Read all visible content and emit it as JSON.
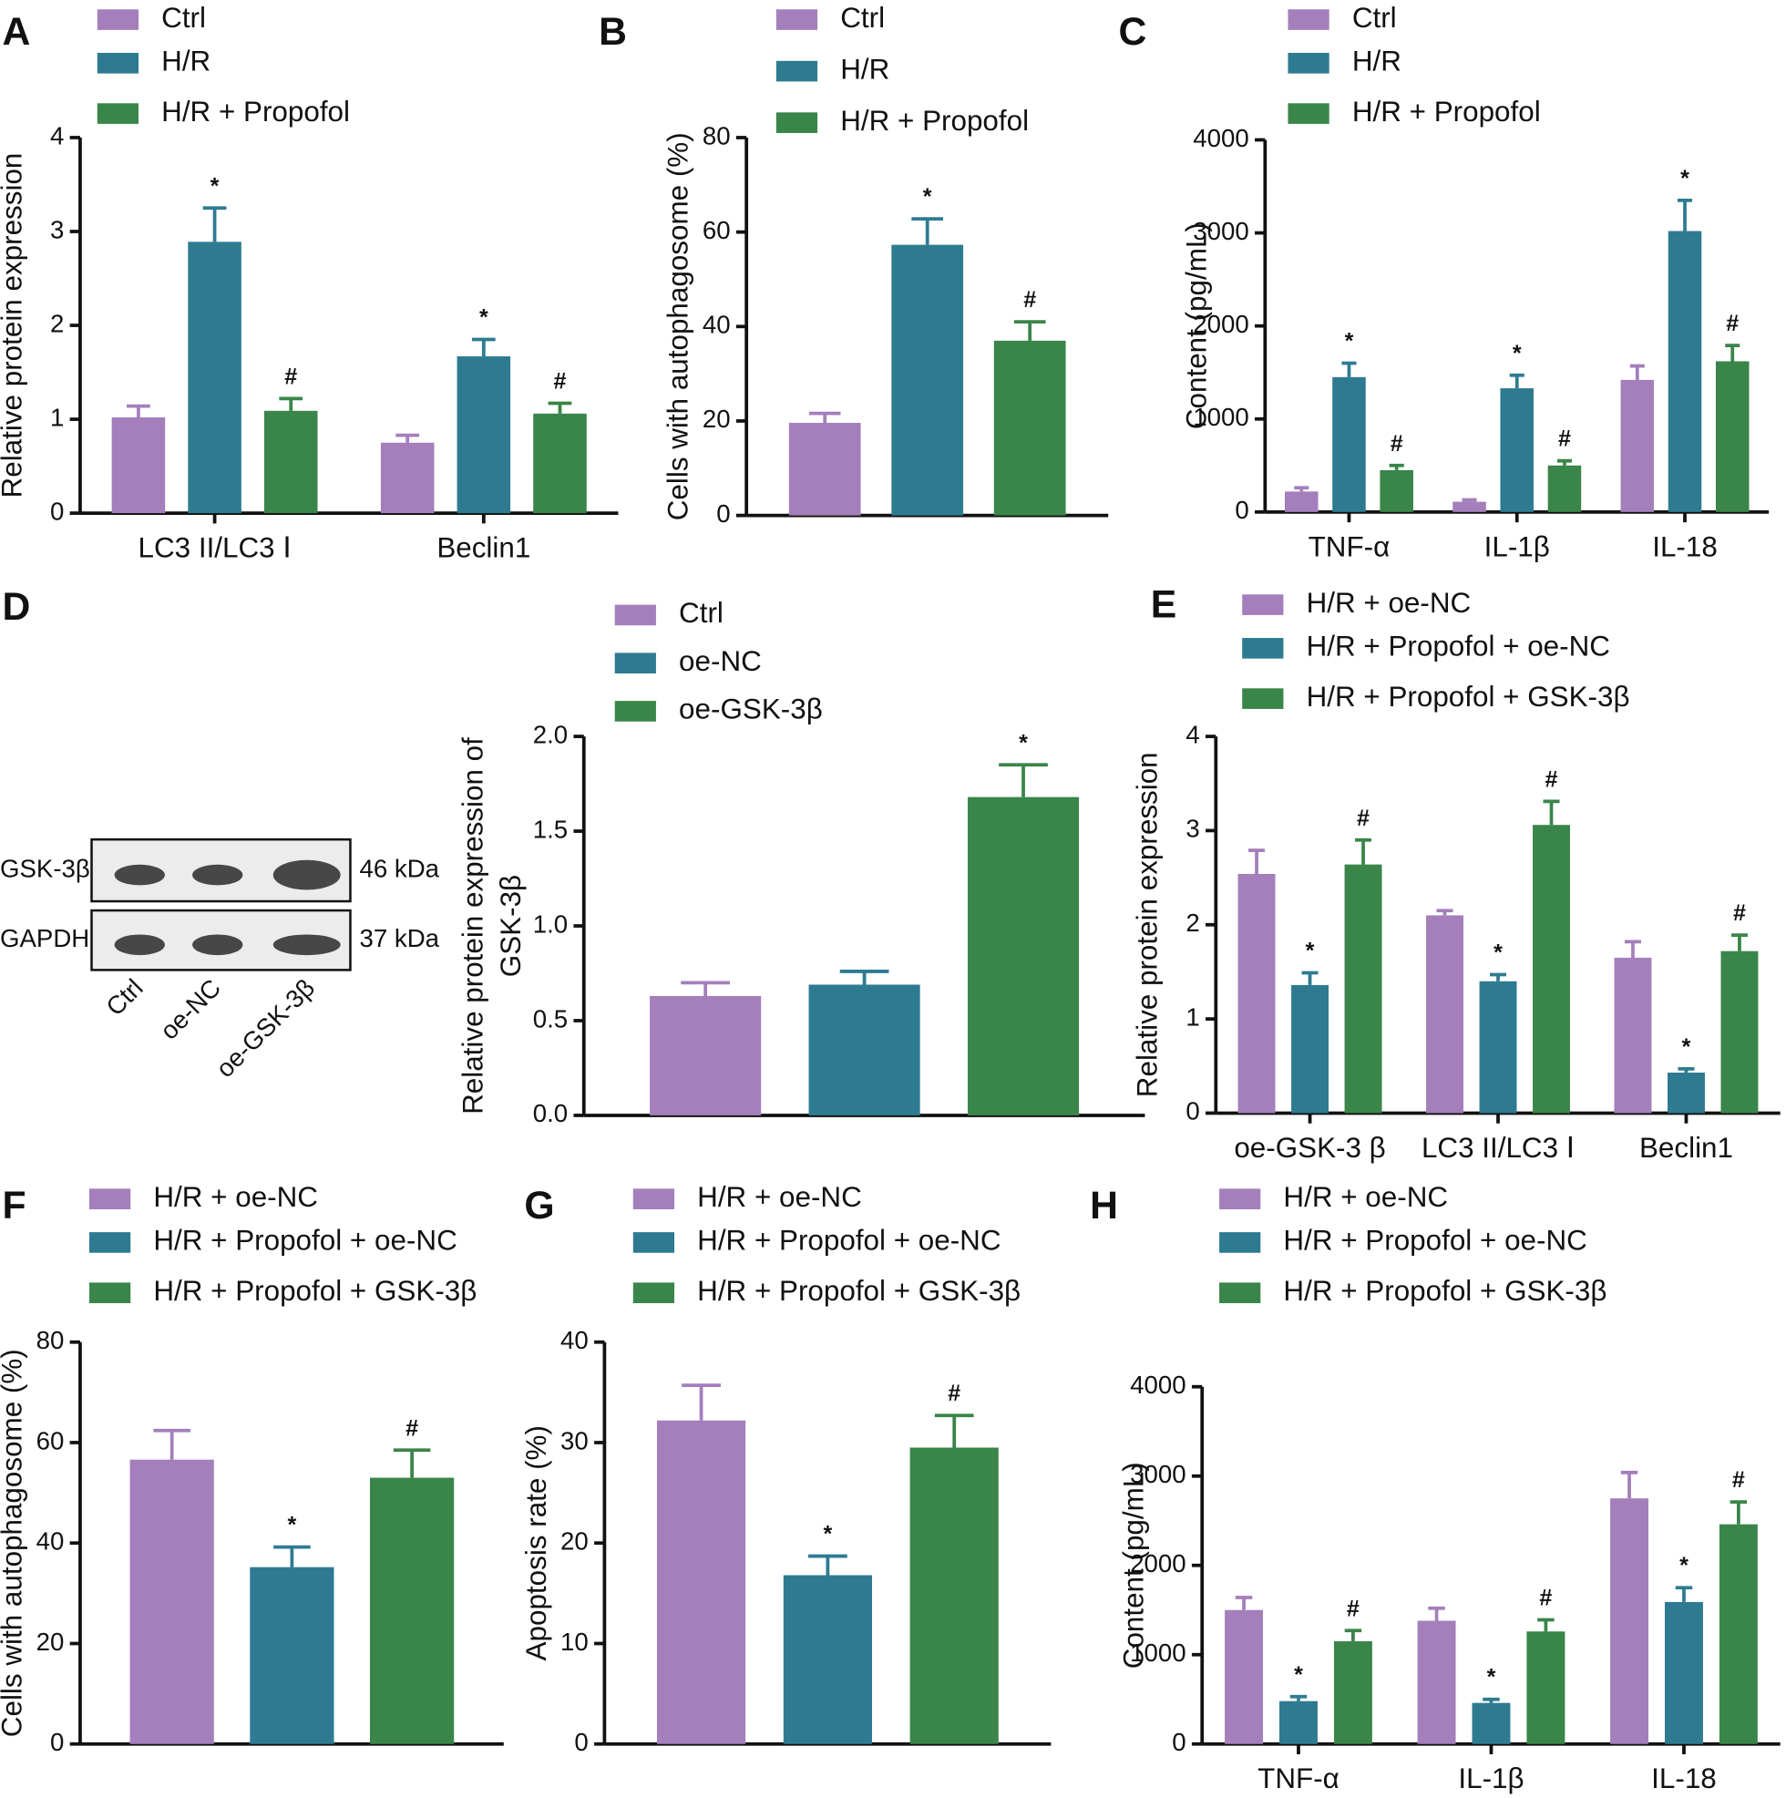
{
  "chart_data": [
    {
      "type": "bar",
      "panel": "A",
      "ylabel": "Relative protein expression",
      "categories": [
        "LC3 II/LC3 Ⅰ",
        "Beclin1"
      ],
      "ylim": [
        0,
        4
      ],
      "yticks": [
        0,
        1,
        2,
        3,
        4
      ],
      "series": [
        {
          "name": "Ctrl",
          "color": "#a47fbb",
          "values": [
            1.02,
            0.75
          ],
          "errors": [
            0.12,
            0.08
          ],
          "annotations": [
            null,
            null
          ]
        },
        {
          "name": "H/R",
          "color": "#2e7b91",
          "values": [
            2.89,
            1.67
          ],
          "errors": [
            0.36,
            0.18
          ],
          "annotations": [
            "*",
            "*"
          ]
        },
        {
          "name": "H/R + Propofol",
          "color": "#3a8549",
          "values": [
            1.09,
            1.06
          ],
          "errors": [
            0.13,
            0.11
          ],
          "annotations": [
            "#",
            "#"
          ]
        }
      ]
    },
    {
      "type": "bar",
      "panel": "B",
      "ylabel": "Cells with autophagosome (%)",
      "categories": [
        null
      ],
      "ylim": [
        0,
        80
      ],
      "yticks": [
        0,
        20,
        40,
        60,
        80
      ],
      "series": [
        {
          "name": "Ctrl",
          "color": "#a47fbb",
          "values": [
            19.6
          ],
          "errors": [
            2
          ],
          "annotations": [
            null
          ]
        },
        {
          "name": "H/R",
          "color": "#2e7b91",
          "values": [
            57.3
          ],
          "errors": [
            5.5
          ],
          "annotations": [
            "*"
          ]
        },
        {
          "name": "H/R + Propofol",
          "color": "#3a8549",
          "values": [
            37
          ],
          "errors": [
            4
          ],
          "annotations": [
            "#"
          ]
        }
      ]
    },
    {
      "type": "bar",
      "panel": "C",
      "ylabel": "Content (pg/mL)",
      "categories": [
        "TNF-α",
        "IL-1β",
        "IL-18"
      ],
      "ylim": [
        0,
        4000
      ],
      "yticks": [
        0,
        1000,
        2000,
        3000,
        4000
      ],
      "series": [
        {
          "name": "Ctrl",
          "color": "#a47fbb",
          "values": [
            220,
            110,
            1420
          ],
          "errors": [
            40,
            20,
            150
          ],
          "annotations": [
            null,
            null,
            null
          ]
        },
        {
          "name": "H/R",
          "color": "#2e7b91",
          "values": [
            1450,
            1330,
            3020
          ],
          "errors": [
            150,
            140,
            330
          ],
          "annotations": [
            "*",
            "*",
            "*"
          ]
        },
        {
          "name": "H/R + Propofol",
          "color": "#3a8549",
          "values": [
            450,
            500,
            1620
          ],
          "errors": [
            50,
            50,
            170
          ],
          "annotations": [
            "#",
            "#",
            "#"
          ]
        }
      ]
    },
    {
      "type": "bar",
      "panel": "D",
      "ylabel": [
        "Relative protein expression of",
        "GSK-3β"
      ],
      "categories": [
        null
      ],
      "ylim": [
        0,
        2
      ],
      "yticks": [
        {
          "value": 0,
          "label": "0.0"
        },
        0.5,
        {
          "value": 1,
          "label": "1.0"
        },
        1.5,
        {
          "value": 2,
          "label": "2.0"
        }
      ],
      "blot": {
        "bands": [
          {
            "name": "GSK-3β",
            "size": "46 kDa"
          },
          {
            "name": "GAPDH",
            "size": "37 kDa"
          }
        ],
        "lanes": [
          "Ctrl",
          "oe-NC",
          "oe-GSK-3β"
        ]
      },
      "series": [
        {
          "name": "Ctrl",
          "color": "#a47fbb",
          "values": [
            0.63
          ],
          "errors": [
            0.07
          ],
          "annotations": [
            null
          ]
        },
        {
          "name": "oe-NC",
          "color": "#2e7b91",
          "values": [
            0.69
          ],
          "errors": [
            0.07
          ],
          "annotations": [
            null
          ]
        },
        {
          "name": "oe-GSK-3β",
          "color": "#3a8549",
          "values": [
            1.68
          ],
          "errors": [
            0.17
          ],
          "annotations": [
            "*"
          ]
        }
      ]
    },
    {
      "type": "bar",
      "panel": "E",
      "ylabel": "Relative protein expression",
      "categories": [
        "oe-GSK-3 β",
        "LC3 II/LC3 Ⅰ",
        "Beclin1"
      ],
      "ylim": [
        0,
        4
      ],
      "yticks": [
        0,
        1,
        2,
        3,
        4
      ],
      "series": [
        {
          "name": "H/R + oe-NC",
          "color": "#a47fbb",
          "values": [
            2.54,
            2.1,
            1.65
          ],
          "errors": [
            0.25,
            0.05,
            0.17
          ],
          "annotations": [
            null,
            null,
            null
          ]
        },
        {
          "name": "H/R + Propofol + oe-NC",
          "color": "#2e7b91",
          "values": [
            1.36,
            1.4,
            0.43
          ],
          "errors": [
            0.13,
            0.07,
            0.04
          ],
          "annotations": [
            "*",
            "*",
            "*"
          ]
        },
        {
          "name": "H/R + Propofol + GSK-3β",
          "color": "#3a8549",
          "values": [
            2.64,
            3.06,
            1.72
          ],
          "errors": [
            0.26,
            0.25,
            0.17
          ],
          "annotations": [
            "#",
            "#",
            "#"
          ]
        }
      ]
    },
    {
      "type": "bar",
      "panel": "F",
      "ylabel": "Cells with autophagosome (%)",
      "categories": [
        null
      ],
      "ylim": [
        0,
        80
      ],
      "yticks": [
        0,
        20,
        40,
        60,
        80
      ],
      "series": [
        {
          "name": "H/R + oe-NC",
          "color": "#a47fbb",
          "values": [
            56.6
          ],
          "errors": [
            5.8
          ],
          "annotations": [
            null
          ]
        },
        {
          "name": "H/R + Propofol + oe-NC",
          "color": "#2e7b91",
          "values": [
            35.2
          ],
          "errors": [
            4
          ],
          "annotations": [
            "*"
          ]
        },
        {
          "name": "H/R + Propofol + GSK-3β",
          "color": "#3a8549",
          "values": [
            53
          ],
          "errors": [
            5.5
          ],
          "annotations": [
            "#"
          ]
        }
      ]
    },
    {
      "type": "bar",
      "panel": "G",
      "ylabel": "Apoptosis rate (%)",
      "categories": [
        null
      ],
      "ylim": [
        0,
        40
      ],
      "yticks": [
        0,
        10,
        20,
        30,
        40
      ],
      "series": [
        {
          "name": "H/R + oe-NC",
          "color": "#a47fbb",
          "values": [
            32.2
          ],
          "errors": [
            3.5
          ],
          "annotations": [
            null
          ]
        },
        {
          "name": "H/R + Propofol + oe-NC",
          "color": "#2e7b91",
          "values": [
            16.8
          ],
          "errors": [
            1.9
          ],
          "annotations": [
            "*"
          ]
        },
        {
          "name": "H/R + Propofol + GSK-3β",
          "color": "#3a8549",
          "values": [
            29.5
          ],
          "errors": [
            3.2
          ],
          "annotations": [
            "#"
          ]
        }
      ]
    },
    {
      "type": "bar",
      "panel": "H",
      "ylabel": "Content (pg/mL)",
      "categories": [
        "TNF-α",
        "IL-1β",
        "IL-18"
      ],
      "ylim": [
        0,
        4000
      ],
      "yticks": [
        0,
        1000,
        2000,
        3000,
        4000
      ],
      "series": [
        {
          "name": "H/R + oe-NC",
          "color": "#a47fbb",
          "values": [
            1500,
            1380,
            2750
          ],
          "errors": [
            140,
            140,
            290
          ],
          "annotations": [
            null,
            null,
            null
          ]
        },
        {
          "name": "H/R + Propofol + oe-NC",
          "color": "#2e7b91",
          "values": [
            480,
            460,
            1590
          ],
          "errors": [
            50,
            40,
            160
          ],
          "annotations": [
            "*",
            "*",
            "*"
          ]
        },
        {
          "name": "H/R + Propofol + GSK-3β",
          "color": "#3a8549",
          "values": [
            1150,
            1260,
            2460
          ],
          "errors": [
            120,
            130,
            250
          ],
          "annotations": [
            "#",
            "#",
            "#"
          ]
        }
      ]
    }
  ]
}
